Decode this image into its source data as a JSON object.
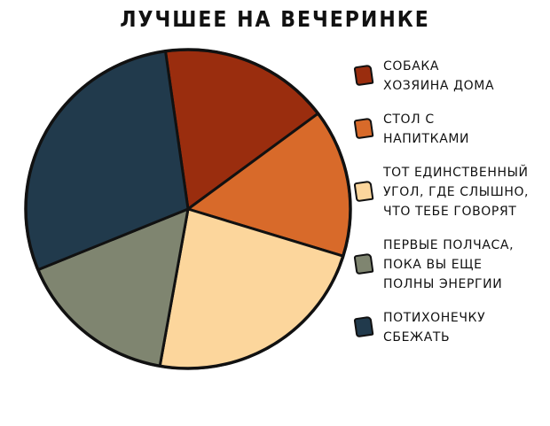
{
  "chart_data": {
    "type": "pie",
    "title": "ЛУЧШЕЕ НА ВЕЧЕРИНКЕ",
    "start_angle": -8,
    "direction": "clockwise",
    "legend_position": "right",
    "slices": [
      {
        "label": "СОБАКА\nХОЗЯИНА ДОМА",
        "value": 17,
        "color": "#9a2d0e"
      },
      {
        "label": "СТОЛ С\nНАПИТКАМИ",
        "value": 15,
        "color": "#d86a2a"
      },
      {
        "label": "ТОТ ЕДИНСТВЕННЫЙ\nУГОЛ, ГДЕ СЛЫШНО,\nЧТО ТЕБЕ ГОВОРЯТ",
        "value": 23,
        "color": "#fcd69c"
      },
      {
        "label": "ПЕРВЫЕ ПОЛЧАСА,\nПОКА ВЫ ЕЩЕ\nПОЛНЫ ЭНЕРГИИ",
        "value": 16,
        "color": "#7f8570"
      },
      {
        "label": "ПОТИХОНЕЧКУ\nСБЕЖАТЬ",
        "value": 29,
        "color": "#213a4c"
      }
    ]
  }
}
